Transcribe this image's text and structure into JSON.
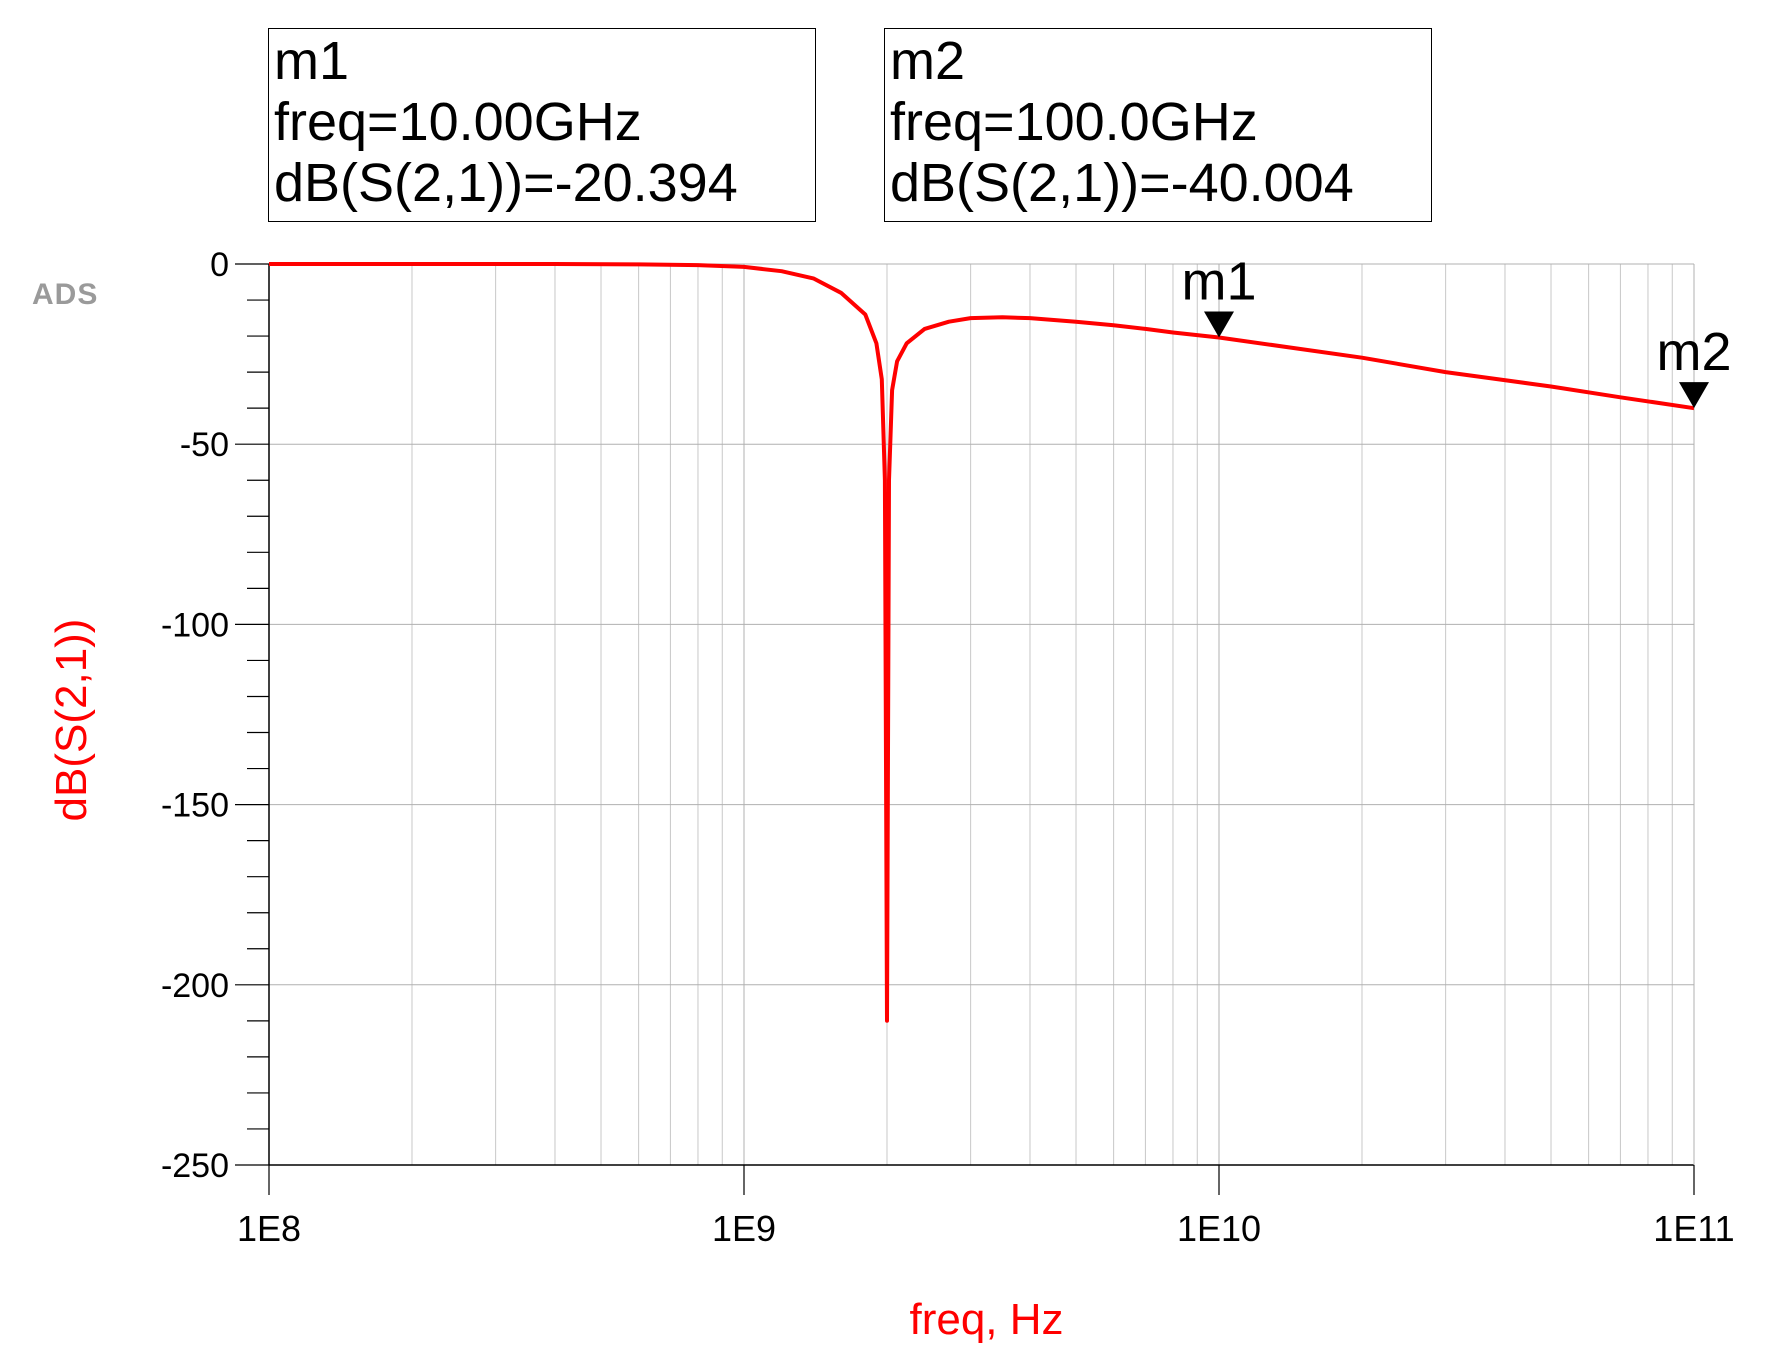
{
  "logo": "ADS",
  "markers": [
    {
      "name": "m1",
      "freq_label": "freq=10.00GHz",
      "value_label": "dB(S(2,1))=-20.394",
      "x": 10000000000.0,
      "y": -20.394
    },
    {
      "name": "m2",
      "freq_label": "freq=100.0GHz",
      "value_label": "dB(S(2,1))=-40.004",
      "x": 100000000000.0,
      "y": -40.004
    }
  ],
  "chart_data": {
    "type": "line",
    "xlabel": "freq, Hz",
    "ylabel": "dB(S(2,1))",
    "x_scale": "log",
    "xlim": [
      100000000.0,
      100000000000.0
    ],
    "ylim": [
      -250,
      0
    ],
    "x_ticks": [
      {
        "value": 100000000.0,
        "label": "1E8"
      },
      {
        "value": 1000000000.0,
        "label": "1E9"
      },
      {
        "value": 10000000000.0,
        "label": "1E10"
      },
      {
        "value": 100000000000.0,
        "label": "1E11"
      }
    ],
    "y_ticks": [
      {
        "value": 0,
        "label": "0"
      },
      {
        "value": -50,
        "label": "-50"
      },
      {
        "value": -100,
        "label": "-100"
      },
      {
        "value": -150,
        "label": "-150"
      },
      {
        "value": -200,
        "label": "-200"
      },
      {
        "value": -250,
        "label": "-250"
      }
    ],
    "grid": true,
    "series": [
      {
        "color": "#ff0000",
        "points": [
          [
            100000000.0,
            0
          ],
          [
            200000000.0,
            0
          ],
          [
            400000000.0,
            0
          ],
          [
            600000000.0,
            -0.1
          ],
          [
            800000000.0,
            -0.3
          ],
          [
            1000000000.0,
            -0.8
          ],
          [
            1200000000.0,
            -2
          ],
          [
            1400000000.0,
            -4
          ],
          [
            1600000000.0,
            -8
          ],
          [
            1800000000.0,
            -14
          ],
          [
            1900000000.0,
            -22
          ],
          [
            1950000000.0,
            -32
          ],
          [
            1980000000.0,
            -60
          ],
          [
            2000000000.0,
            -210
          ],
          [
            2020000000.0,
            -60
          ],
          [
            2050000000.0,
            -35
          ],
          [
            2100000000.0,
            -27
          ],
          [
            2200000000.0,
            -22
          ],
          [
            2400000000.0,
            -18
          ],
          [
            2700000000.0,
            -16
          ],
          [
            3000000000.0,
            -15
          ],
          [
            3500000000.0,
            -14.8
          ],
          [
            4000000000.0,
            -15
          ],
          [
            5000000000.0,
            -16
          ],
          [
            6000000000.0,
            -17
          ],
          [
            7000000000.0,
            -18
          ],
          [
            8000000000.0,
            -19
          ],
          [
            10000000000.0,
            -20.394
          ],
          [
            20000000000.0,
            -26
          ],
          [
            30000000000.0,
            -30
          ],
          [
            50000000000.0,
            -34
          ],
          [
            70000000000.0,
            -37
          ],
          [
            100000000000.0,
            -40.004
          ]
        ]
      }
    ]
  }
}
